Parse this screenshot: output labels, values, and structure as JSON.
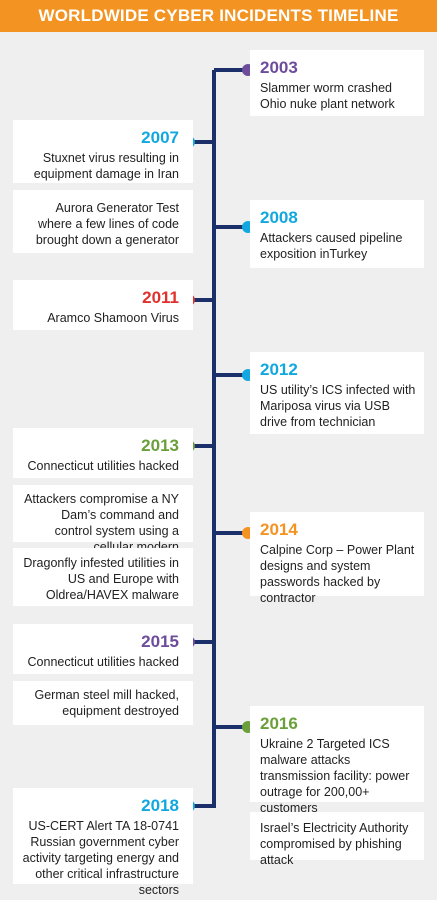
{
  "title": "WORLDWIDE CYBER INCIDENTS TIMELINE",
  "colors": {
    "header": "#f39322",
    "spine": "#1b2f6b",
    "purple": "#6d4c9b",
    "cyan": "#12a8df",
    "red": "#e0322c",
    "green": "#6a9f3a",
    "orange": "#f39322"
  },
  "events": [
    {
      "year": "2003",
      "color": "#6d4c9b",
      "side": "right",
      "text": "Slammer worm crashed Ohio nuke plant network"
    },
    {
      "year": "2007",
      "color": "#12a8df",
      "side": "left",
      "text": "Stuxnet virus resulting in equipment damage in Iran"
    },
    {
      "year": "",
      "color": "",
      "side": "left",
      "text": "Aurora Generator Test where a few lines of code brought down a generator"
    },
    {
      "year": "2008",
      "color": "#12a8df",
      "side": "right",
      "text": "Attackers caused pipeline exposition inTurkey"
    },
    {
      "year": "2011",
      "color": "#e0322c",
      "side": "left",
      "text": "Aramco Shamoon Virus"
    },
    {
      "year": "2012",
      "color": "#12a8df",
      "side": "right",
      "text": "US utility’s ICS infected with Mariposa virus via USB drive from technician"
    },
    {
      "year": "2013",
      "color": "#6a9f3a",
      "side": "left",
      "text": "Connecticut utilities hacked"
    },
    {
      "year": "",
      "color": "",
      "side": "left",
      "text": "Attackers compromise a NY Dam’s command and control system using a cellular modern"
    },
    {
      "year": "2014",
      "color": "#f39322",
      "side": "right",
      "text": "Calpine Corp – Power Plant designs and system passwords hacked by contractor"
    },
    {
      "year": "",
      "color": "",
      "side": "left",
      "text": "Dragonfly infested utilities in US and Europe with Oldrea/HAVEX malware"
    },
    {
      "year": "2015",
      "color": "#6d4c9b",
      "side": "left",
      "text": "Connecticut utilities hacked"
    },
    {
      "year": "",
      "color": "",
      "side": "left",
      "text": "German steel mill hacked, equipment destroyed"
    },
    {
      "year": "2016",
      "color": "#6a9f3a",
      "side": "right",
      "text": "Ukraine 2 Targeted ICS malware attacks transmission facility: power outrage for 200,00+ customers"
    },
    {
      "year": "2018",
      "color": "#12a8df",
      "side": "left",
      "text": "US-CERT Alert TA 18-0741 Russian government cyber activity targeting energy and other critical infrastructure sectors"
    },
    {
      "year": "",
      "color": "",
      "side": "right",
      "text": "Israel’s Electricity Authority compromised by phishing attack"
    }
  ]
}
